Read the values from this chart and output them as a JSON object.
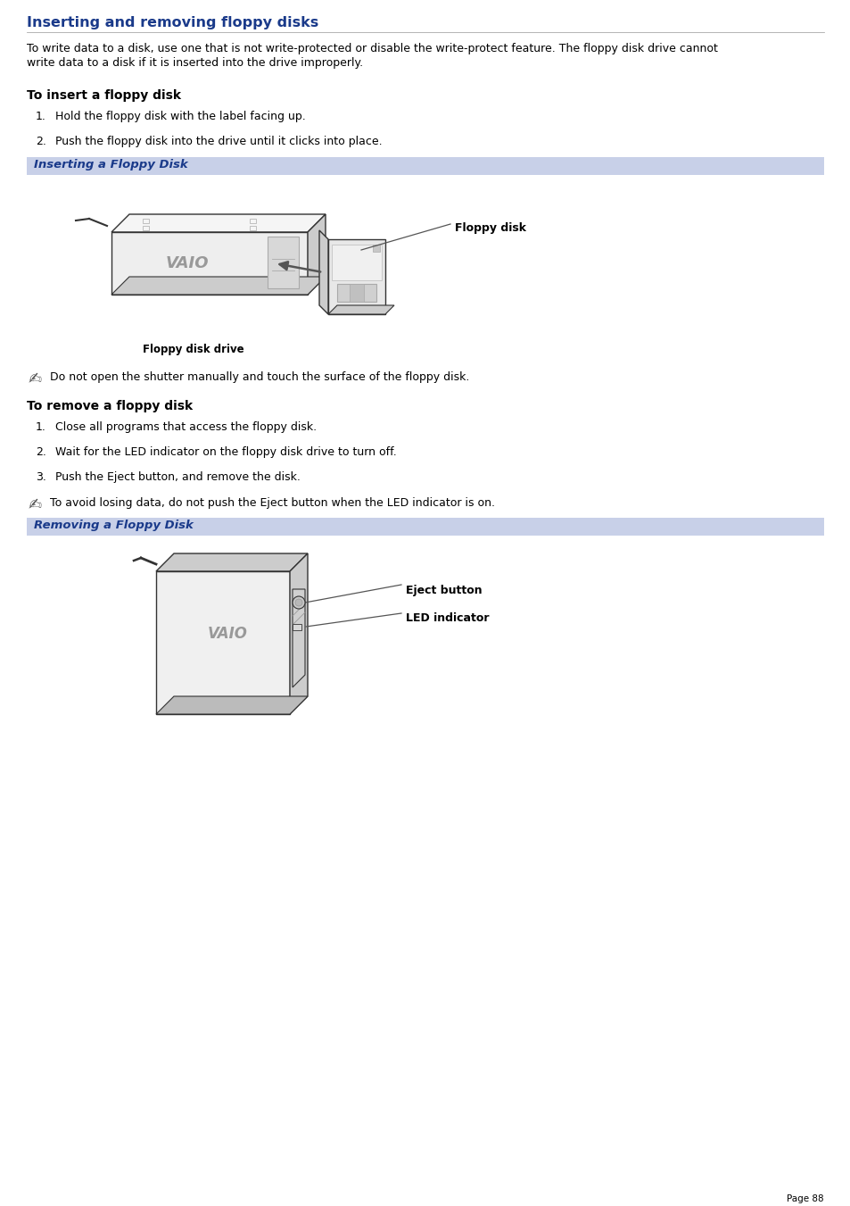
{
  "title": "Inserting and removing floppy disks",
  "title_color": "#1a3a8a",
  "background_color": "#ffffff",
  "banner_color": "#c8d0e8",
  "banner1_text": "Inserting a Floppy Disk",
  "banner2_text": "Removing a Floppy Disk",
  "body_text_color": "#000000",
  "heading_color": "#000000",
  "page_number": "Page 88",
  "intro_line1": "To write data to a disk, use one that is not write-protected or disable the write-protect feature. The floppy disk drive cannot",
  "intro_line2": "write data to a disk if it is inserted into the drive improperly.",
  "insert_heading": "To insert a floppy disk",
  "insert_steps": [
    "Hold the floppy disk with the label facing up.",
    "Push the floppy disk into the drive until it clicks into place."
  ],
  "insert_note": "Do not open the shutter manually and touch the surface of the floppy disk.",
  "remove_heading": "To remove a floppy disk",
  "remove_steps": [
    "Close all programs that access the floppy disk.",
    "Wait for the LED indicator on the floppy disk drive to turn off.",
    "Push the Eject button, and remove the disk."
  ],
  "remove_note": "To avoid losing data, do not push the Eject button when the LED indicator is on.",
  "dark_color": "#333333",
  "mid_color": "#888888",
  "light_color": "#dddddd",
  "label_color": "#000000"
}
